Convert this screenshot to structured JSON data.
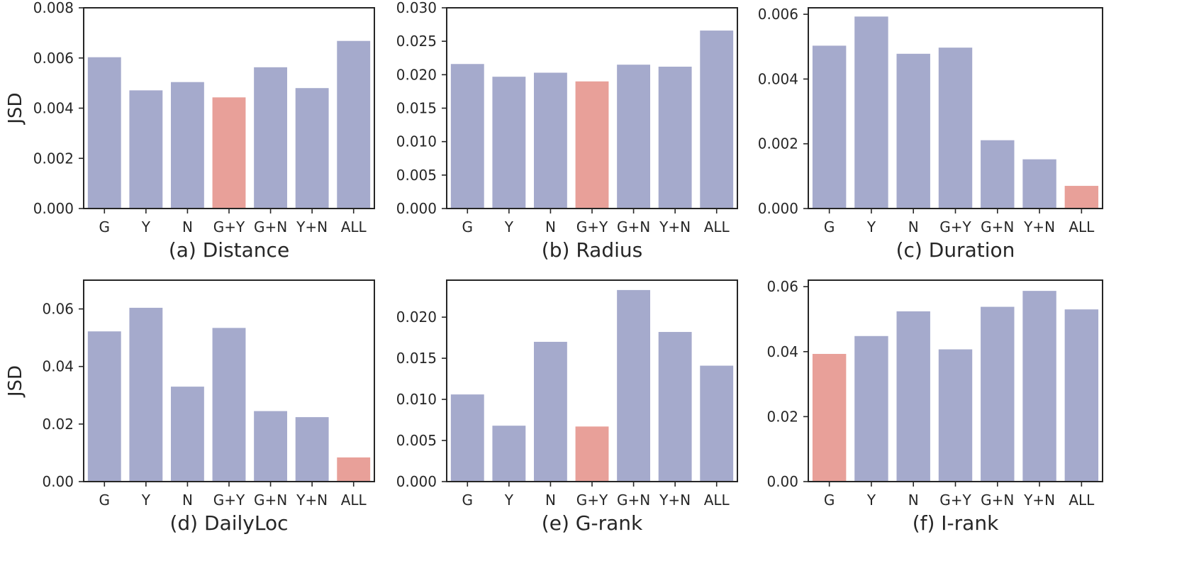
{
  "colors": {
    "bar": "#a5aacc",
    "highlight": "#e8a099",
    "axis": "#262626"
  },
  "chart_data": [
    {
      "type": "bar",
      "title": "(a) Distance",
      "ylabel": "JSD",
      "xlabel": "",
      "categories": [
        "G",
        "Y",
        "N",
        "G+Y",
        "G+N",
        "Y+N",
        "ALL"
      ],
      "values": [
        0.00603,
        0.00471,
        0.00504,
        0.00443,
        0.00563,
        0.0048,
        0.00668
      ],
      "highlight_index": 3,
      "ylim": [
        0,
        0.008
      ],
      "yticks": [
        "0.000",
        "0.002",
        "0.004",
        "0.006",
        "0.008"
      ]
    },
    {
      "type": "bar",
      "title": "(b) Radius",
      "ylabel": "",
      "xlabel": "",
      "categories": [
        "G",
        "Y",
        "N",
        "G+Y",
        "G+N",
        "Y+N",
        "ALL"
      ],
      "values": [
        0.0216,
        0.0197,
        0.0203,
        0.019,
        0.0215,
        0.0212,
        0.0266
      ],
      "highlight_index": 3,
      "ylim": [
        0,
        0.03
      ],
      "yticks": [
        "0.000",
        "0.005",
        "0.010",
        "0.015",
        "0.020",
        "0.025",
        "0.030"
      ]
    },
    {
      "type": "bar",
      "title": "(c) Duration",
      "ylabel": "",
      "xlabel": "",
      "categories": [
        "G",
        "Y",
        "N",
        "G+Y",
        "G+N",
        "Y+N",
        "ALL"
      ],
      "values": [
        0.00503,
        0.00593,
        0.00478,
        0.00497,
        0.00211,
        0.00152,
        0.0007
      ],
      "highlight_index": 6,
      "ylim": [
        0,
        0.0062
      ],
      "yticks": [
        "0.000",
        "0.002",
        "0.004",
        "0.006"
      ]
    },
    {
      "type": "bar",
      "title": "(d) DailyLoc",
      "ylabel": "JSD",
      "xlabel": "",
      "categories": [
        "G",
        "Y",
        "N",
        "G+Y",
        "G+N",
        "Y+N",
        "ALL"
      ],
      "values": [
        0.0522,
        0.0604,
        0.033,
        0.0534,
        0.0245,
        0.0224,
        0.0084
      ],
      "highlight_index": 6,
      "ylim": [
        0,
        0.07
      ],
      "yticks": [
        "0.00",
        "0.02",
        "0.04",
        "0.06"
      ]
    },
    {
      "type": "bar",
      "title": "(e) G-rank",
      "ylabel": "",
      "xlabel": "",
      "categories": [
        "G",
        "Y",
        "N",
        "G+Y",
        "G+N",
        "Y+N",
        "ALL"
      ],
      "values": [
        0.0106,
        0.0068,
        0.017,
        0.0067,
        0.0233,
        0.0182,
        0.0141
      ],
      "highlight_index": 3,
      "ylim": [
        0,
        0.0245
      ],
      "yticks": [
        "0.000",
        "0.005",
        "0.010",
        "0.015",
        "0.020"
      ]
    },
    {
      "type": "bar",
      "title": "(f) I-rank",
      "ylabel": "",
      "xlabel": "",
      "categories": [
        "G",
        "Y",
        "N",
        "G+Y",
        "G+N",
        "Y+N",
        "ALL"
      ],
      "values": [
        0.0393,
        0.0448,
        0.0524,
        0.0407,
        0.0538,
        0.0587,
        0.053
      ],
      "highlight_index": 0,
      "ylim": [
        0,
        0.062
      ],
      "yticks": [
        "0.00",
        "0.02",
        "0.04",
        "0.06"
      ]
    }
  ]
}
